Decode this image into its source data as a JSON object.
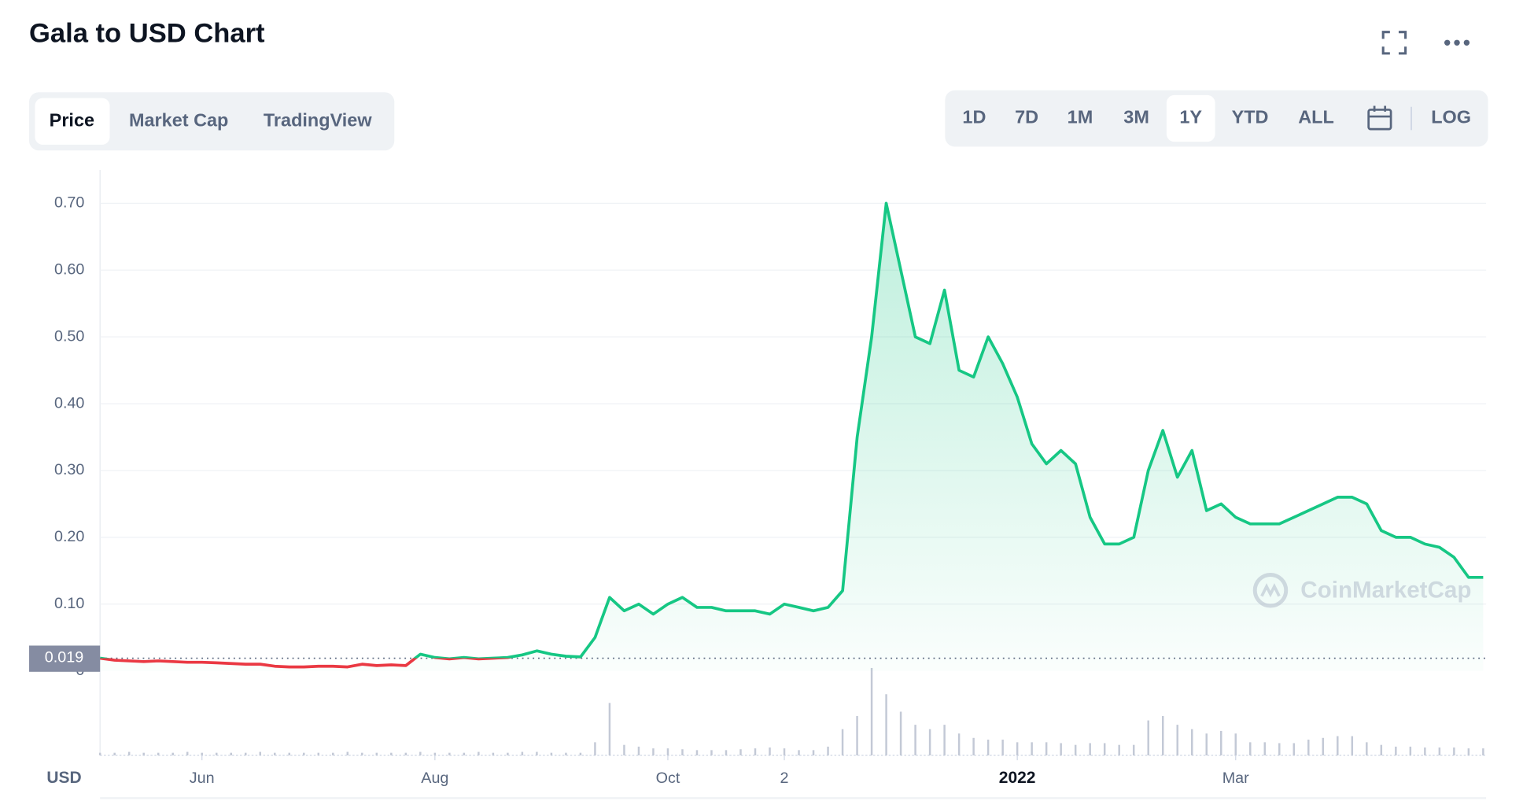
{
  "header": {
    "title": "Gala to USD Chart",
    "tabs": [
      "Price",
      "Market Cap",
      "TradingView"
    ],
    "ranges": [
      "1D",
      "7D",
      "1M",
      "3M",
      "1Y",
      "YTD",
      "ALL"
    ],
    "log": "LOG"
  },
  "chart_data": {
    "type": "line",
    "categories": [
      null,
      null,
      null,
      null,
      null,
      null,
      null,
      "Jun",
      null,
      null,
      null,
      null,
      null,
      null,
      null,
      null,
      null,
      null,
      null,
      null,
      null,
      null,
      null,
      "Aug",
      null,
      null,
      null,
      null,
      null,
      null,
      null,
      null,
      null,
      null,
      null,
      null,
      null,
      null,
      null,
      "Oct",
      null,
      null,
      null,
      null,
      null,
      null,
      null,
      "2",
      null,
      null,
      null,
      null,
      null,
      null,
      null,
      null,
      null,
      null,
      null,
      null,
      null,
      null,
      null,
      "2022",
      null,
      null,
      null,
      null,
      null,
      null,
      null,
      null,
      null,
      null,
      null,
      null,
      null,
      null,
      "Mar",
      null,
      null,
      null,
      null,
      null,
      null,
      null,
      null,
      null,
      null,
      null,
      null,
      null,
      null,
      null,
      null,
      null
    ],
    "values": [
      0.019,
      0.016,
      0.015,
      0.014,
      0.015,
      0.014,
      0.013,
      0.013,
      0.012,
      0.011,
      0.01,
      0.01,
      0.007,
      0.006,
      0.006,
      0.007,
      0.007,
      0.006,
      0.01,
      0.008,
      0.009,
      0.008,
      0.025,
      0.02,
      0.018,
      0.02,
      0.018,
      0.019,
      0.02,
      0.024,
      0.03,
      0.025,
      0.022,
      0.021,
      0.05,
      0.11,
      0.09,
      0.1,
      0.085,
      0.1,
      0.11,
      0.095,
      0.095,
      0.09,
      0.09,
      0.09,
      0.085,
      0.1,
      0.095,
      0.09,
      0.095,
      0.12,
      0.35,
      0.5,
      0.7,
      0.6,
      0.5,
      0.49,
      0.57,
      0.45,
      0.44,
      0.5,
      0.46,
      0.41,
      0.34,
      0.31,
      0.33,
      0.31,
      0.23,
      0.19,
      0.19,
      0.2,
      0.3,
      0.36,
      0.29,
      0.33,
      0.24,
      0.25,
      0.23,
      0.22,
      0.22,
      0.22,
      0.23,
      0.24,
      0.25,
      0.26,
      0.26,
      0.25,
      0.21,
      0.2,
      0.2,
      0.19,
      0.185,
      0.17,
      0.14,
      0.14
    ],
    "volume": [
      3,
      3,
      4,
      3,
      3,
      3,
      4,
      3,
      3,
      3,
      3,
      4,
      3,
      3,
      3,
      3,
      3,
      4,
      3,
      3,
      3,
      3,
      4,
      3,
      3,
      3,
      4,
      3,
      3,
      4,
      4,
      3,
      3,
      3,
      15,
      60,
      12,
      10,
      8,
      8,
      7,
      6,
      6,
      6,
      7,
      8,
      9,
      8,
      6,
      6,
      10,
      30,
      45,
      100,
      70,
      50,
      35,
      30,
      35,
      25,
      20,
      18,
      18,
      15,
      15,
      15,
      14,
      12,
      14,
      14,
      12,
      12,
      40,
      45,
      35,
      30,
      25,
      28,
      25,
      15,
      15,
      14,
      14,
      18,
      20,
      22,
      22,
      15,
      12,
      10,
      10,
      9,
      9,
      9,
      8,
      8
    ],
    "color": "#16c784",
    "down_color": "#ea3943",
    "volume_color": "#c3c9d6",
    "reference": 0.019,
    "ylim": [
      0,
      0.75
    ],
    "yticks": [
      0,
      {
        "value": 0.1,
        "label": "0.10"
      },
      {
        "value": 0.2,
        "label": "0.20"
      },
      {
        "value": 0.3,
        "label": "0.30"
      },
      {
        "value": 0.4,
        "label": "0.40"
      },
      {
        "value": 0.5,
        "label": "0.50"
      },
      {
        "value": 0.6,
        "label": "0.60"
      },
      {
        "value": 0.7,
        "label": "0.70"
      }
    ],
    "grid": true,
    "currency": "USD",
    "watermark": "CoinMarketCap"
  }
}
